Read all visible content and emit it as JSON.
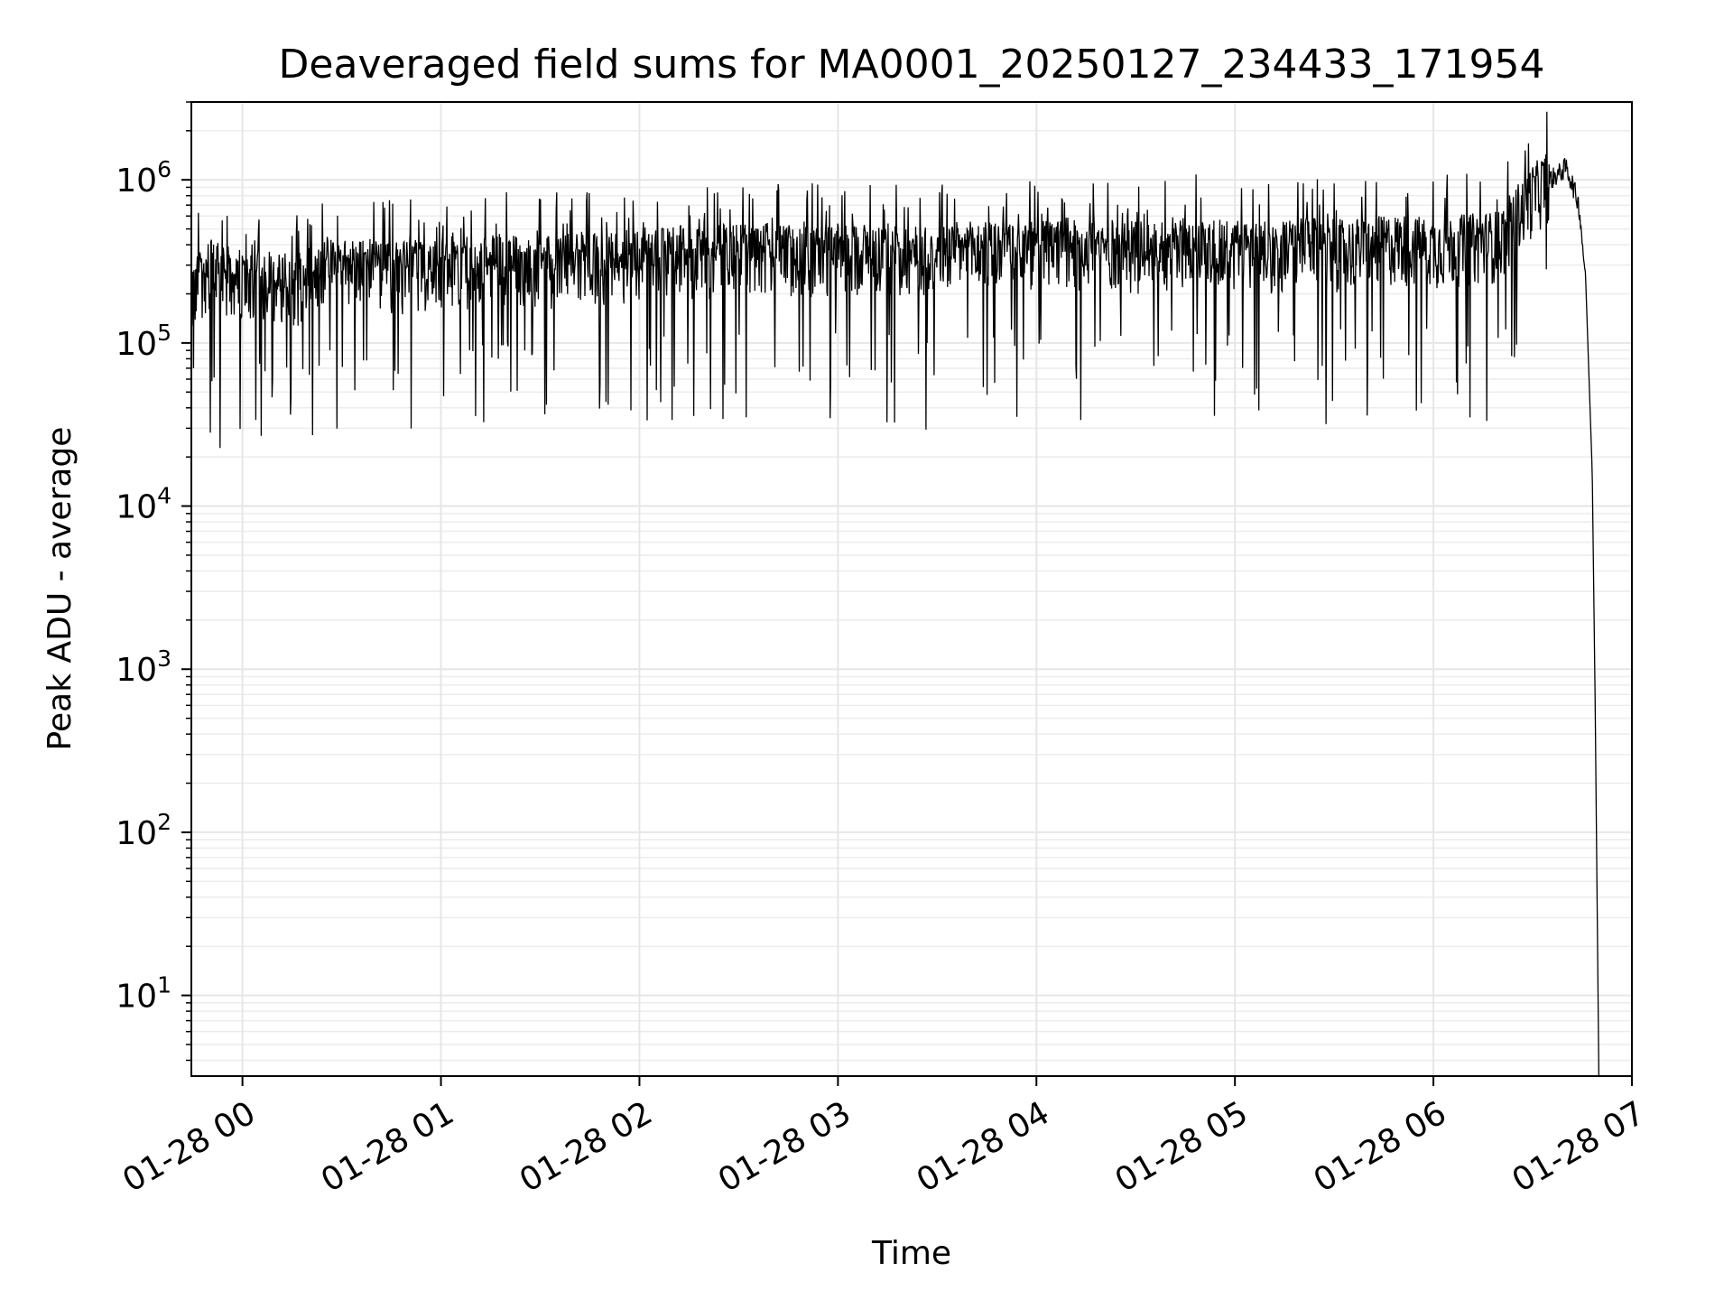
{
  "chart_data": {
    "type": "line",
    "title": "Deaveraged field sums for MA0001_20250127_234433_171954",
    "xlabel": "Time",
    "ylabel": "Peak ADU - average",
    "yscale": "log",
    "ylim": [
      3.2,
      3000000
    ],
    "xlim": [
      "2025-01-27 23:44:33",
      "2025-01-28 07:00:00"
    ],
    "grid": true,
    "line_color": "#000000",
    "x_ticks": [
      {
        "value": "2025-01-28 00:00",
        "label": "01-28 00"
      },
      {
        "value": "2025-01-28 01:00",
        "label": "01-28 01"
      },
      {
        "value": "2025-01-28 02:00",
        "label": "01-28 02"
      },
      {
        "value": "2025-01-28 03:00",
        "label": "01-28 03"
      },
      {
        "value": "2025-01-28 04:00",
        "label": "01-28 04"
      },
      {
        "value": "2025-01-28 05:00",
        "label": "01-28 05"
      },
      {
        "value": "2025-01-28 06:00",
        "label": "01-28 06"
      },
      {
        "value": "2025-01-28 07:00",
        "label": "01-28 07"
      }
    ],
    "y_ticks": [
      {
        "value": 10,
        "base": "10",
        "exp": "1"
      },
      {
        "value": 100,
        "base": "10",
        "exp": "2"
      },
      {
        "value": 1000,
        "base": "10",
        "exp": "3"
      },
      {
        "value": 10000,
        "base": "10",
        "exp": "4"
      },
      {
        "value": 100000,
        "base": "10",
        "exp": "5"
      },
      {
        "value": 1000000,
        "base": "10",
        "exp": "6"
      }
    ],
    "series": [
      {
        "x": [
          "2025-01-27 23:44:33",
          "2025-01-27 23:50:00",
          "2025-01-27 23:56:00",
          "2025-01-28 00:05:00",
          "2025-01-28 00:10:00",
          "2025-01-28 00:15:00",
          "2025-01-28 00:20:00",
          "2025-01-28 00:30:00",
          "2025-01-28 00:40:00",
          "2025-01-28 00:50:00",
          "2025-01-28 01:00:00",
          "2025-01-28 01:10:00",
          "2025-01-28 01:20:00",
          "2025-01-28 01:30:00",
          "2025-01-28 01:40:00",
          "2025-01-28 01:50:00",
          "2025-01-28 02:00:00",
          "2025-01-28 02:10:00",
          "2025-01-28 02:20:00",
          "2025-01-28 02:30:00",
          "2025-01-28 02:40:00",
          "2025-01-28 02:50:00",
          "2025-01-28 03:00:00",
          "2025-01-28 03:10:00",
          "2025-01-28 03:20:00",
          "2025-01-28 03:30:00",
          "2025-01-28 03:40:00",
          "2025-01-28 03:50:00",
          "2025-01-28 04:00:00",
          "2025-01-28 04:10:00",
          "2025-01-28 04:20:00",
          "2025-01-28 04:30:00",
          "2025-01-28 04:40:00",
          "2025-01-28 04:50:00",
          "2025-01-28 05:00:00",
          "2025-01-28 05:10:00",
          "2025-01-28 05:20:00",
          "2025-01-28 05:30:00",
          "2025-01-28 05:40:00",
          "2025-01-28 05:50:00",
          "2025-01-28 06:00:00",
          "2025-01-28 06:10:00",
          "2025-01-28 06:20:00",
          "2025-01-28 06:25:00",
          "2025-01-28 06:30:00",
          "2025-01-28 06:35:00",
          "2025-01-28 06:38:00",
          "2025-01-28 06:40:00",
          "2025-01-28 06:42:00",
          "2025-01-28 06:44:00",
          "2025-01-28 06:46:00",
          "2025-01-28 06:48:00",
          "2025-01-28 06:49:00",
          "2025-01-28 06:50:00"
        ],
        "y": [
          220000,
          280000,
          250000,
          240000,
          230000,
          210000,
          260000,
          290000,
          280000,
          270000,
          300000,
          290000,
          310000,
          280000,
          320000,
          300000,
          330000,
          340000,
          330000,
          360000,
          350000,
          340000,
          350000,
          360000,
          340000,
          350000,
          360000,
          370000,
          360000,
          380000,
          370000,
          360000,
          380000,
          390000,
          370000,
          360000,
          380000,
          370000,
          380000,
          400000,
          380000,
          400000,
          420000,
          600000,
          800000,
          1000000,
          1100000,
          1200000,
          950000,
          700000,
          250000,
          16000,
          400,
          3.5
        ]
      }
    ]
  }
}
